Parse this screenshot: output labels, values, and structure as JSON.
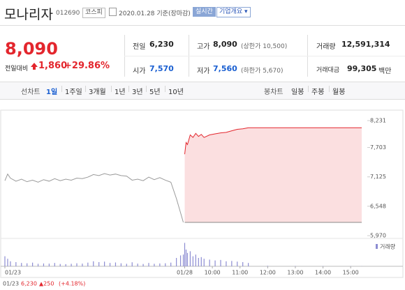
{
  "header": {
    "name": "모나리자",
    "code": "012690",
    "market": "코스피",
    "date": "2020.01.28 기준(장마감)",
    "realtime": "실시간",
    "company": "기업개요"
  },
  "price": {
    "current": "8,090",
    "change_label": "전일대비",
    "change": "1,860",
    "rate": "+29.86%"
  },
  "table": {
    "rows": [
      [
        {
          "label": "전일",
          "value": "6,230"
        },
        {
          "label": "고가",
          "value": "8,090",
          "note": "(상한가 10,500)"
        },
        {
          "label": "거래량",
          "value": "12,591,314"
        }
      ],
      [
        {
          "label": "시가",
          "value": "7,570"
        },
        {
          "label": "저가",
          "value": "7,560",
          "note": "(하한가 5,670)"
        },
        {
          "label": "거래대금",
          "value": "99,305",
          "unit": "백만"
        }
      ]
    ]
  },
  "tabs": {
    "line": "선차트",
    "line_items": [
      "1일",
      "1주일",
      "3개월",
      "1년",
      "3년",
      "5년",
      "10년"
    ],
    "candle": "봉차트",
    "candle_items": [
      "일봉",
      "주봉",
      "월봉"
    ]
  },
  "chart_data": {
    "type": "line",
    "x": [
      0,
      0.1,
      0.2,
      0.4,
      0.6,
      0.8,
      1.0,
      1.2,
      1.4,
      1.6,
      1.8,
      2.0,
      2.2,
      2.4,
      2.6,
      2.8,
      3.0,
      3.2,
      3.4,
      3.6,
      3.8,
      4.0,
      4.2,
      4.4,
      4.6,
      4.8,
      5.0,
      5.2,
      5.4,
      5.6,
      5.8,
      6.0,
      6.2,
      6.35,
      6.45,
      6.5,
      6.55,
      6.6,
      6.7,
      6.8,
      6.9,
      7.0,
      7.1,
      7.2,
      7.4,
      7.6,
      7.8,
      8.0,
      8.2,
      8.4,
      8.6,
      8.8,
      9.5,
      10.5,
      11.5,
      12.5,
      12.9
    ],
    "xlim": [
      0,
      13
    ],
    "xticks": [
      {
        "value": 0,
        "label": "01/23"
      },
      {
        "value": 6.5,
        "label": "01/28"
      },
      {
        "value": 7.5,
        "label": "10:00"
      },
      {
        "value": 8.5,
        "label": "11:00"
      },
      {
        "value": 9.5,
        "label": "12:00"
      },
      {
        "value": 10.5,
        "label": "13:00"
      },
      {
        "value": 11.5,
        "label": "14:00"
      },
      {
        "value": 12.5,
        "label": "15:00"
      }
    ],
    "ylim": [
      5970,
      8231
    ],
    "yticks": [
      {
        "value": 8231,
        "label": "8,231"
      },
      {
        "value": 7703,
        "label": "7,703"
      },
      {
        "value": 7125,
        "label": "7,125"
      },
      {
        "value": 6548,
        "label": "6,548"
      },
      {
        "value": 5970,
        "label": "5,970"
      }
    ],
    "baseline": 6230,
    "y2lim": [
      0,
      1500000
    ],
    "series": [
      {
        "color": "#9a9a9a",
        "values": [
          7050,
          7180,
          7100,
          7040,
          7080,
          7030,
          7060,
          7020,
          7070,
          7040,
          7090,
          7050,
          7080,
          7060,
          7100,
          7090,
          7120,
          7170,
          7150,
          7190,
          7160,
          7180,
          7150,
          7140,
          7060,
          7080,
          7050,
          7120,
          7070,
          7110,
          7060,
          7020,
          6700,
          6420,
          6230,
          null,
          null,
          null,
          null,
          null,
          null,
          null,
          null,
          null,
          null,
          null,
          null,
          null,
          null,
          null,
          null,
          null,
          null,
          null,
          null,
          null,
          null
        ]
      },
      {
        "color": "#e3262d",
        "values": [
          null,
          null,
          null,
          null,
          null,
          null,
          null,
          null,
          null,
          null,
          null,
          null,
          null,
          null,
          null,
          null,
          null,
          null,
          null,
          null,
          null,
          null,
          null,
          null,
          null,
          null,
          null,
          null,
          null,
          null,
          null,
          null,
          null,
          null,
          null,
          7570,
          7800,
          7760,
          7950,
          7900,
          7980,
          7920,
          7960,
          7900,
          7950,
          7970,
          7990,
          8000,
          8030,
          8060,
          8070,
          8090,
          8090,
          8090,
          8090,
          8090,
          8090
        ]
      },
      {
        "name": "거래량",
        "axis": "y2",
        "color": "#8c8cd2",
        "values": [
          600000,
          450000,
          300000,
          250000,
          200000,
          180000,
          220000,
          150000,
          170000,
          160000,
          200000,
          140000,
          130000,
          150000,
          180000,
          160000,
          220000,
          300000,
          250000,
          280000,
          200000,
          230000,
          180000,
          150000,
          240000,
          160000,
          140000,
          200000,
          150000,
          170000,
          180000,
          220000,
          500000,
          650000,
          700000,
          1400000,
          1000000,
          800000,
          900000,
          600000,
          700000,
          500000,
          550000,
          450000,
          400000,
          350000,
          380000,
          300000,
          320000,
          280000,
          250000,
          200000,
          30000,
          20000,
          15000,
          10000,
          8000
        ]
      }
    ]
  },
  "footer": {
    "date": "01/23",
    "close": "6,230",
    "change": "▲250",
    "rate": "(+4.18%)"
  }
}
